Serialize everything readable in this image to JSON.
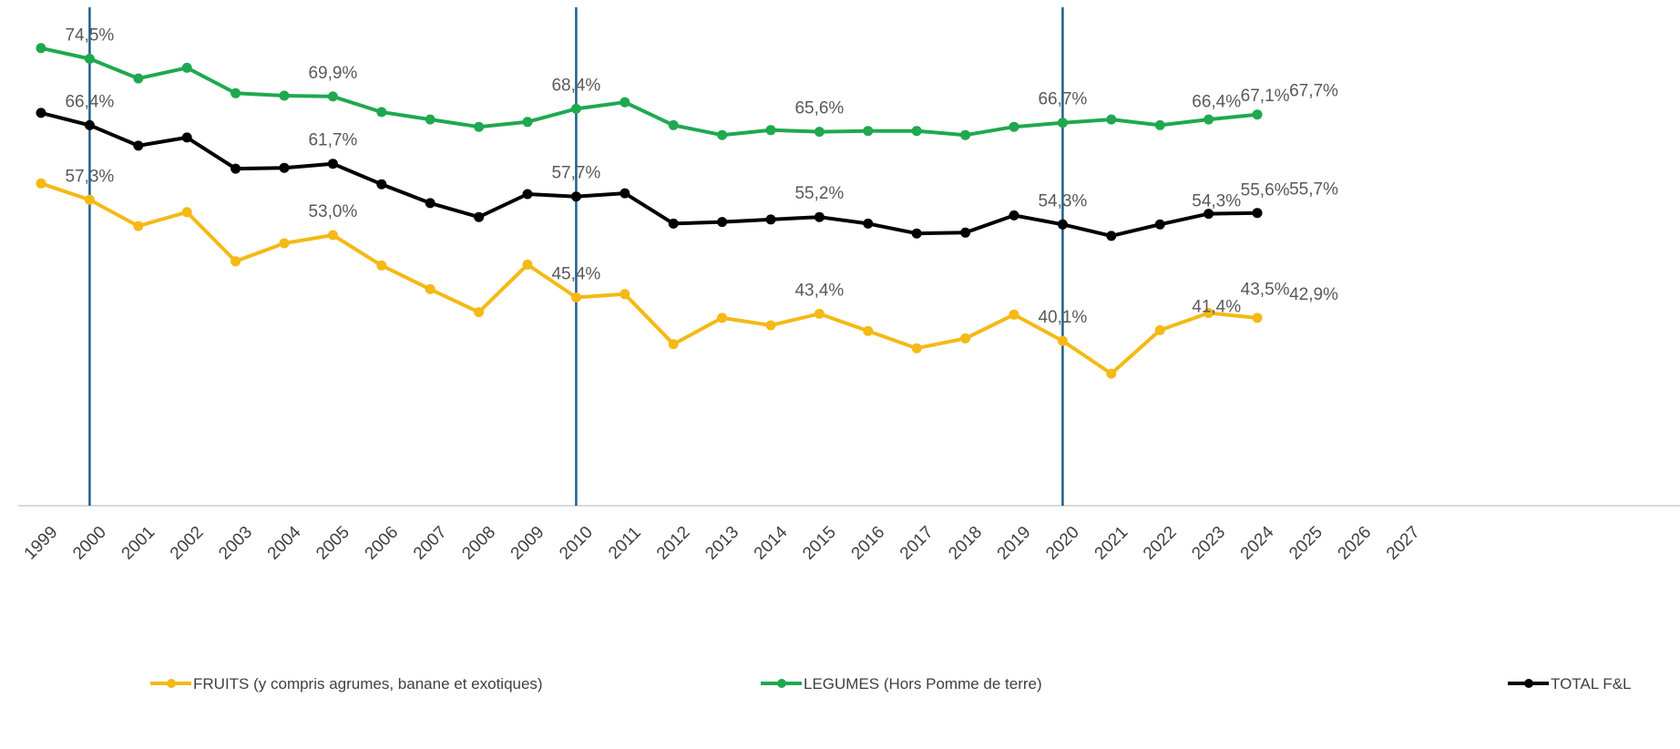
{
  "chart_data": {
    "type": "line",
    "title": "",
    "xlabel": "",
    "ylabel": "",
    "ylim": [
      20,
      80
    ],
    "grid": false,
    "legend_position": "bottom",
    "x_ticks": [
      "1999",
      "2000",
      "2001",
      "2002",
      "2003",
      "2004",
      "2005",
      "2006",
      "2007",
      "2008",
      "2009",
      "2010",
      "2011",
      "2012",
      "2013",
      "2014",
      "2015",
      "2016",
      "2017",
      "2018",
      "2019",
      "2020",
      "2021",
      "2022",
      "2023",
      "2024",
      "2025",
      "2026",
      "2027"
    ],
    "x": [
      1999,
      2000,
      2001,
      2002,
      2003,
      2004,
      2005,
      2006,
      2007,
      2008,
      2009,
      2010,
      2011,
      2012,
      2013,
      2014,
      2015,
      2016,
      2017,
      2018,
      2019,
      2020,
      2021,
      2022,
      2023,
      2024
    ],
    "reference_lines_x": [
      2000,
      2010,
      2020
    ],
    "reference_line_color": "#1f5f8b",
    "series": [
      {
        "name": "FRUITS (y compris agrumes, banane et exotiques)",
        "color": "#f5b915",
        "values": [
          59.3,
          57.3,
          54.1,
          55.8,
          49.8,
          52.0,
          53.0,
          49.3,
          46.4,
          43.6,
          49.4,
          45.4,
          45.8,
          39.7,
          42.9,
          42.0,
          43.4,
          41.3,
          39.2,
          40.4,
          43.3,
          40.1,
          36.1,
          41.4,
          43.5,
          42.9
        ],
        "data_labels": [
          {
            "x": 2000,
            "text": "57,3%"
          },
          {
            "x": 2005,
            "text": "53,0%"
          },
          {
            "x": 2010,
            "text": "45,4%"
          },
          {
            "x": 2015,
            "text": "43,4%"
          },
          {
            "x": 2020,
            "text": "40,1%"
          },
          {
            "x": 2022,
            "text": "41,4%"
          },
          {
            "x": 2023,
            "text": "43,5%"
          },
          {
            "x": 2024,
            "text": "42,9%"
          }
        ]
      },
      {
        "name": "LEGUMES (Hors Pomme de terre)",
        "color": "#1fa84f",
        "values": [
          75.8,
          74.5,
          72.1,
          73.4,
          70.3,
          70.0,
          69.9,
          68.0,
          67.1,
          66.2,
          66.8,
          68.4,
          69.2,
          66.4,
          65.2,
          65.8,
          65.6,
          65.7,
          65.7,
          65.2,
          66.2,
          66.7,
          67.1,
          66.4,
          67.1,
          67.7
        ],
        "data_labels": [
          {
            "x": 2000,
            "text": "74,5%"
          },
          {
            "x": 2005,
            "text": "69,9%"
          },
          {
            "x": 2010,
            "text": "68,4%"
          },
          {
            "x": 2015,
            "text": "65,6%"
          },
          {
            "x": 2020,
            "text": "66,7%"
          },
          {
            "x": 2022,
            "text": "66,4%"
          },
          {
            "x": 2023,
            "text": "67,1%"
          },
          {
            "x": 2024,
            "text": "67,7%"
          }
        ]
      },
      {
        "name": "TOTAL F&L",
        "color": "#000000",
        "values": [
          67.9,
          66.4,
          63.9,
          64.9,
          61.1,
          61.2,
          61.7,
          59.2,
          56.9,
          55.2,
          58.0,
          57.7,
          58.1,
          54.4,
          54.6,
          54.9,
          55.2,
          54.4,
          53.2,
          53.3,
          55.4,
          54.3,
          52.9,
          54.3,
          55.6,
          55.7
        ],
        "data_labels": [
          {
            "x": 2000,
            "text": "66,4%"
          },
          {
            "x": 2005,
            "text": "61,7%"
          },
          {
            "x": 2010,
            "text": "57,7%"
          },
          {
            "x": 2015,
            "text": "55,2%"
          },
          {
            "x": 2020,
            "text": "54,3%"
          },
          {
            "x": 2022,
            "text": "54,3%"
          },
          {
            "x": 2023,
            "text": "55,6%"
          },
          {
            "x": 2024,
            "text": "55,7%"
          }
        ]
      }
    ]
  }
}
